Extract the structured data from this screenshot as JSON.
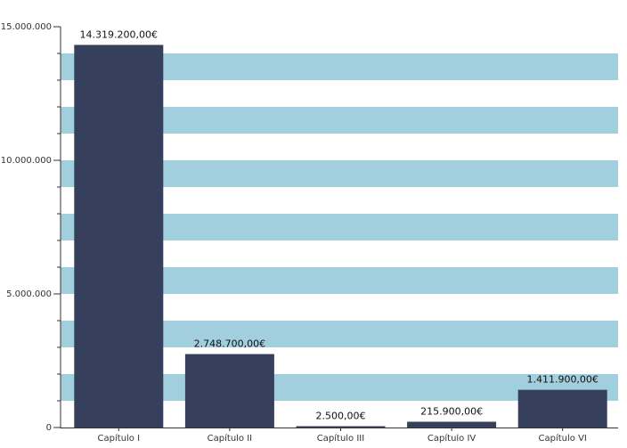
{
  "chart_data": {
    "type": "bar",
    "categories": [
      "Capítulo I",
      "Capítulo II",
      "Capítulo III",
      "Capítulo IV",
      "Capítulo VI"
    ],
    "values": [
      14319200,
      2748700,
      2500,
      215900,
      1411900
    ],
    "data_labels": [
      "14.319.200,00€",
      "2.748.700,00€",
      "2.500,00€",
      "215.900,00€",
      "1.411.900,00€"
    ],
    "yticks": [
      0,
      5000000,
      10000000,
      15000000
    ],
    "ytick_labels": [
      "0",
      "5.000.000",
      "10.000.000",
      "15.000.000"
    ],
    "ylim": [
      0,
      15000000
    ],
    "title": "",
    "xlabel": "",
    "ylabel": "",
    "legend": "none",
    "grid": "alternating horizontal bands"
  },
  "colors": {
    "bar": "#363f5c",
    "band": "#a1cfdd",
    "axis": "#333333"
  }
}
